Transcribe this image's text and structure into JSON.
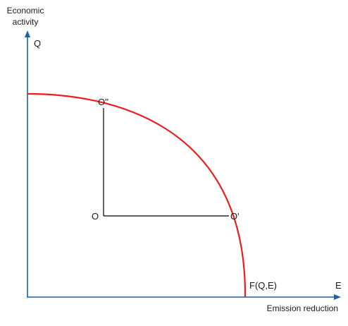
{
  "diagram": {
    "y_axis": {
      "title_line1": "Economic",
      "title_line2": "activity",
      "symbol": "Q"
    },
    "x_axis": {
      "title": "Emission reduction",
      "symbol": "E"
    },
    "points": {
      "o": "O",
      "o_prime": "O'",
      "o_double_prime": "O''"
    },
    "curve_label": "F(Q,E)",
    "colors": {
      "frontier": "#ee1c1c",
      "axes": "#1f5fa8",
      "lines": "#000000"
    }
  }
}
